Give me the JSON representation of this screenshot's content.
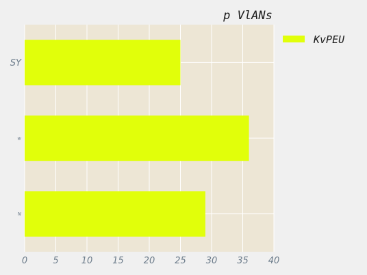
{
  "chart_data": {
    "type": "bar",
    "orientation": "horizontal",
    "title": "p VlANs",
    "xlabel": "",
    "ylabel": "",
    "categories": [
      "SY",
      "w",
      "N"
    ],
    "series": [
      {
        "name": "KvPEU",
        "values": [
          25,
          36,
          29
        ]
      }
    ],
    "xlim": [
      0,
      40
    ],
    "xticks": [
      0,
      5,
      10,
      15,
      20,
      25,
      30,
      35,
      40
    ],
    "grid": true,
    "legend_position": "upper-right-outside",
    "colors": {
      "bar": "#e1ff0a",
      "plot_background": "#ede6d5",
      "figure_background": "#f0f0f0",
      "grid": "#ffffff",
      "tick_text": "#6b7b8a"
    }
  }
}
